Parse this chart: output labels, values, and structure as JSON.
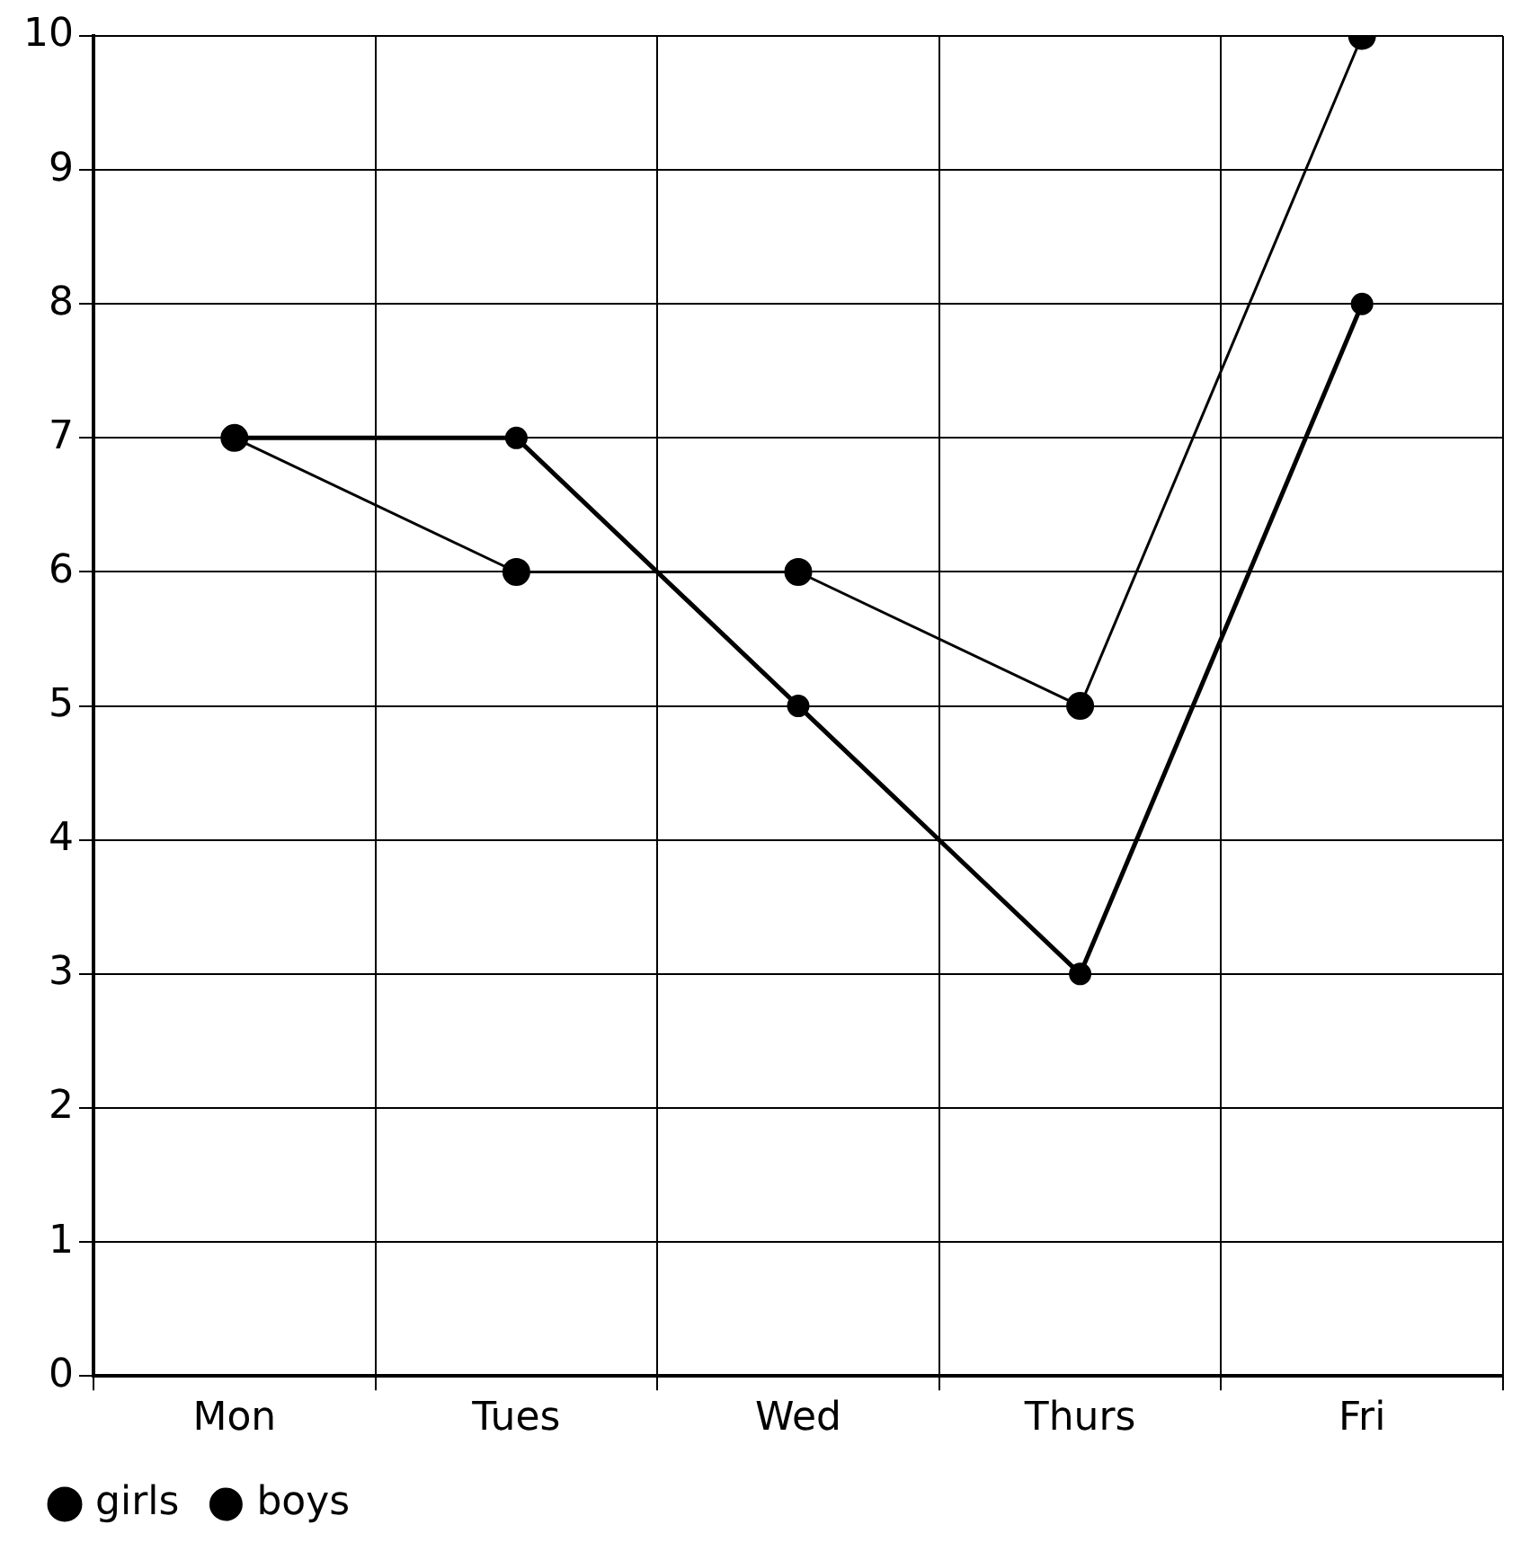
{
  "chart_data": {
    "type": "line",
    "categories": [
      "Mon",
      "Tues",
      "Wed",
      "Thurs",
      "Fri"
    ],
    "series": [
      {
        "name": "girls",
        "color": "#000000",
        "values": [
          7,
          7,
          5,
          3,
          8
        ]
      },
      {
        "name": "boys",
        "color": "#000000",
        "values": [
          7,
          6,
          6,
          5,
          10
        ]
      }
    ],
    "ylim": [
      0,
      10
    ],
    "yticks": [
      0,
      1,
      2,
      3,
      4,
      5,
      6,
      7,
      8,
      9,
      10
    ],
    "grid": true,
    "legend": "bottom left",
    "marker": "circle",
    "line_style": "solid"
  }
}
